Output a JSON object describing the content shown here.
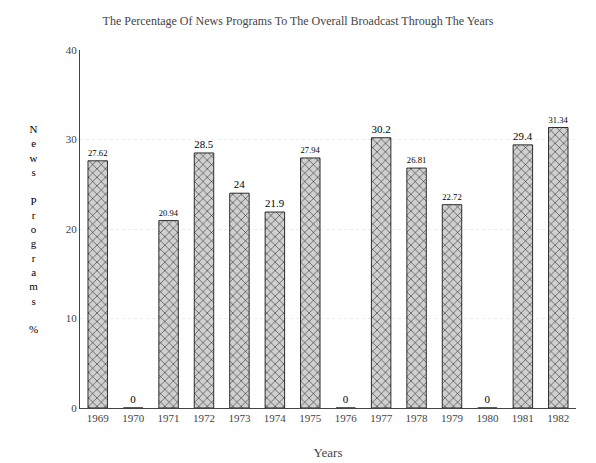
{
  "chart_data": {
    "type": "bar",
    "title": "The Percentage Of News Programs To The Overall Broadcast Through The Years",
    "xlabel": "Years",
    "ylabel": "News Programs %",
    "categories": [
      "1969",
      "1970",
      "1971",
      "1972",
      "1973",
      "1974",
      "1975",
      "1976",
      "1977",
      "1978",
      "1979",
      "1980",
      "1981",
      "1982"
    ],
    "values": [
      27.62,
      0,
      20.94,
      28.5,
      24,
      21.9,
      27.94,
      0,
      30.2,
      26.81,
      22.72,
      0,
      29.4,
      31.34
    ],
    "color": "#d0d0d0",
    "ylim": [
      0,
      40
    ],
    "yticks": [
      0,
      10,
      20,
      30,
      40
    ],
    "grid": true,
    "data_labels": true
  }
}
